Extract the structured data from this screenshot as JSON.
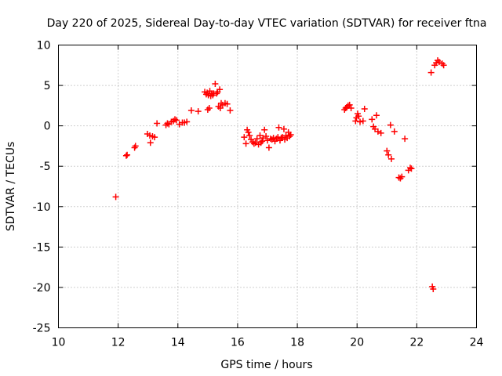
{
  "chart_data": {
    "type": "scatter",
    "title": "Day 220 of 2025, Sidereal Day-to-day VTEC variation (SDTVAR) for receiver ftna",
    "xlabel": "GPS time / hours",
    "ylabel": "SDTVAR / TECUs",
    "xlim": [
      10,
      24
    ],
    "ylim": [
      -25,
      10
    ],
    "xticks": [
      10,
      12,
      14,
      16,
      18,
      20,
      22,
      24
    ],
    "yticks": [
      -25,
      -20,
      -15,
      -10,
      -5,
      0,
      5,
      10
    ],
    "xtick_labels": [
      "10",
      "12",
      "14",
      "16",
      "18",
      "20",
      "22",
      "24"
    ],
    "ytick_labels": [
      "-25",
      "-20",
      "-15",
      "-10",
      "-5",
      "0",
      "5",
      "10"
    ],
    "grid": true,
    "marker": "+",
    "color": "#ff0000",
    "series": [
      {
        "name": "SDTVAR",
        "points": [
          [
            11.92,
            -8.8
          ],
          [
            12.27,
            -3.7
          ],
          [
            12.3,
            -3.6
          ],
          [
            12.55,
            -2.7
          ],
          [
            12.58,
            -2.5
          ],
          [
            12.98,
            -1.0
          ],
          [
            13.06,
            -1.2
          ],
          [
            13.08,
            -2.1
          ],
          [
            13.15,
            -1.3
          ],
          [
            13.22,
            -1.4
          ],
          [
            13.3,
            0.3
          ],
          [
            13.6,
            0.1
          ],
          [
            13.65,
            0.3
          ],
          [
            13.7,
            0.2
          ],
          [
            13.78,
            0.5
          ],
          [
            13.85,
            0.6
          ],
          [
            13.9,
            0.8
          ],
          [
            13.95,
            0.7
          ],
          [
            14.05,
            0.2
          ],
          [
            14.15,
            0.4
          ],
          [
            14.22,
            0.4
          ],
          [
            14.3,
            0.5
          ],
          [
            14.45,
            1.9
          ],
          [
            14.68,
            1.8
          ],
          [
            14.9,
            4.2
          ],
          [
            14.95,
            3.9
          ],
          [
            14.98,
            4.1
          ],
          [
            15.0,
            2.0
          ],
          [
            15.02,
            3.8
          ],
          [
            15.05,
            2.2
          ],
          [
            15.07,
            4.3
          ],
          [
            15.1,
            3.7
          ],
          [
            15.13,
            4.0
          ],
          [
            15.17,
            3.8
          ],
          [
            15.2,
            4.0
          ],
          [
            15.25,
            5.2
          ],
          [
            15.3,
            4.0
          ],
          [
            15.33,
            4.2
          ],
          [
            15.36,
            2.4
          ],
          [
            15.4,
            4.5
          ],
          [
            15.42,
            2.2
          ],
          [
            15.45,
            2.8
          ],
          [
            15.5,
            2.6
          ],
          [
            15.58,
            2.8
          ],
          [
            15.65,
            2.7
          ],
          [
            15.75,
            1.9
          ],
          [
            16.22,
            -1.4
          ],
          [
            16.28,
            -2.2
          ],
          [
            16.32,
            -0.5
          ],
          [
            16.36,
            -0.8
          ],
          [
            16.4,
            -1.2
          ],
          [
            16.45,
            -1.7
          ],
          [
            16.5,
            -2.0
          ],
          [
            16.55,
            -2.2
          ],
          [
            16.6,
            -2.1
          ],
          [
            16.65,
            -1.6
          ],
          [
            16.7,
            -2.3
          ],
          [
            16.75,
            -1.2
          ],
          [
            16.78,
            -2.1
          ],
          [
            16.82,
            -1.9
          ],
          [
            16.85,
            -1.5
          ],
          [
            16.9,
            -0.5
          ],
          [
            16.95,
            -1.3
          ],
          [
            17.0,
            -1.8
          ],
          [
            17.05,
            -2.7
          ],
          [
            17.1,
            -1.6
          ],
          [
            17.15,
            -1.7
          ],
          [
            17.2,
            -1.5
          ],
          [
            17.25,
            -1.9
          ],
          [
            17.3,
            -1.6
          ],
          [
            17.35,
            -1.4
          ],
          [
            17.38,
            -0.2
          ],
          [
            17.42,
            -1.8
          ],
          [
            17.46,
            -1.5
          ],
          [
            17.5,
            -1.4
          ],
          [
            17.55,
            -0.4
          ],
          [
            17.58,
            -1.7
          ],
          [
            17.62,
            -1.2
          ],
          [
            17.66,
            -1.5
          ],
          [
            17.7,
            -0.8
          ],
          [
            17.74,
            -1.3
          ],
          [
            17.78,
            -1.1
          ],
          [
            19.58,
            2.0
          ],
          [
            19.62,
            2.2
          ],
          [
            19.65,
            2.3
          ],
          [
            19.7,
            2.5
          ],
          [
            19.75,
            2.6
          ],
          [
            19.8,
            2.2
          ],
          [
            19.95,
            0.6
          ],
          [
            19.98,
            1.0
          ],
          [
            20.02,
            1.5
          ],
          [
            20.05,
            1.2
          ],
          [
            20.1,
            0.5
          ],
          [
            20.2,
            0.6
          ],
          [
            20.25,
            2.1
          ],
          [
            20.5,
            0.8
          ],
          [
            20.55,
            -0.1
          ],
          [
            20.6,
            -0.4
          ],
          [
            20.65,
            1.3
          ],
          [
            20.7,
            -0.7
          ],
          [
            20.8,
            -0.9
          ],
          [
            21.0,
            -3.1
          ],
          [
            21.05,
            -3.6
          ],
          [
            21.12,
            0.1
          ],
          [
            21.15,
            -4.1
          ],
          [
            21.25,
            -0.7
          ],
          [
            21.4,
            -6.4
          ],
          [
            21.45,
            -6.5
          ],
          [
            21.5,
            -6.3
          ],
          [
            21.6,
            -1.6
          ],
          [
            21.72,
            -5.5
          ],
          [
            21.78,
            -5.2
          ],
          [
            21.82,
            -5.3
          ],
          [
            22.48,
            6.6
          ],
          [
            22.52,
            -19.9
          ],
          [
            22.55,
            -20.2
          ],
          [
            22.6,
            7.5
          ],
          [
            22.65,
            7.8
          ],
          [
            22.7,
            8.1
          ],
          [
            22.75,
            7.9
          ],
          [
            22.85,
            7.7
          ],
          [
            22.9,
            7.5
          ]
        ]
      }
    ]
  }
}
